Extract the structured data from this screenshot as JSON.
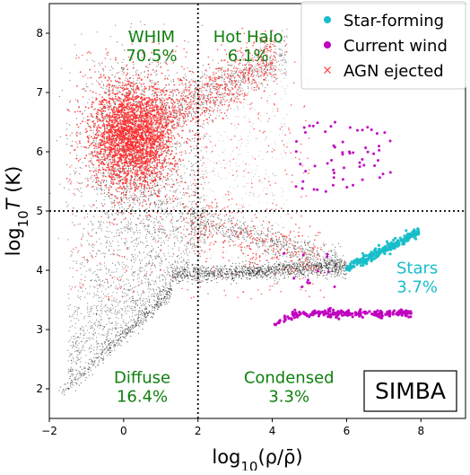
{
  "chart_data": {
    "type": "scatter",
    "xlabel_html": "log<tspan baseline-shift='sub' font-size='15'>10</tspan>(ρ/ρ̄)",
    "ylabel_html": "log<tspan baseline-shift='sub' font-size='15'>10</tspan><tspan font-style='italic'>T</tspan> (K)",
    "xlabel": "log10(ρ/ρ̄)",
    "ylabel": "log10T (K)",
    "xlim": [
      -2,
      9.2
    ],
    "ylim": [
      1.5,
      8.5
    ],
    "xticks": [
      -2,
      0,
      2,
      4,
      6,
      8
    ],
    "yticks": [
      2,
      3,
      4,
      5,
      6,
      7,
      8
    ],
    "xtick_labels": [
      "−2",
      "0",
      "2",
      "4",
      "6",
      "8"
    ],
    "ytick_labels": [
      "2",
      "3",
      "4",
      "5",
      "6",
      "7",
      "8"
    ],
    "divider_x": 2,
    "divider_y": 5,
    "legend": {
      "placement": "top-right",
      "entries": [
        {
          "label": "Star-forming",
          "marker": "dot",
          "color": "#17bec9"
        },
        {
          "label": "Current wind",
          "marker": "dot",
          "color": "#bf00bf"
        },
        {
          "label": "AGN ejected",
          "marker": "x",
          "color": "#ff4f4f"
        }
      ]
    },
    "region_labels": [
      {
        "name": "WHIM",
        "fraction": "70.5%",
        "x": 0.75,
        "y": 7.85
      },
      {
        "name": "Hot Halo",
        "fraction": "6.1%",
        "x": 3.35,
        "y": 7.85
      },
      {
        "name": "Diffuse",
        "fraction": "16.4%",
        "x": 0.5,
        "y": 2.1
      },
      {
        "name": "Condensed",
        "fraction": "3.3%",
        "x": 4.45,
        "y": 2.1
      }
    ],
    "stars_label": {
      "name": "Stars",
      "fraction": "3.7%",
      "x": 7.9,
      "y": 3.95
    },
    "sim_label": "SIMBA",
    "colors": {
      "gas": "#000000",
      "agn": "#ff2a2a",
      "star_forming": "#17bec9",
      "wind": "#bf00bf",
      "region_text": "#108010",
      "stars_text": "#17bec9"
    },
    "series": [
      {
        "name": "Star-forming",
        "trend": {
          "x": [
            5.9,
            8.0
          ],
          "y": [
            4.0,
            4.65
          ]
        }
      },
      {
        "name": "Current wind",
        "clumps": [
          {
            "x": [
              4.0,
              7.8
            ],
            "y": [
              3.05,
              3.3
            ]
          },
          {
            "x": [
              4.2,
              7.8
            ],
            "y": [
              5.4,
              6.5
            ]
          }
        ]
      },
      {
        "name": "AGN ejected",
        "core": {
          "x": 0.2,
          "y": 6.3
        }
      }
    ]
  }
}
